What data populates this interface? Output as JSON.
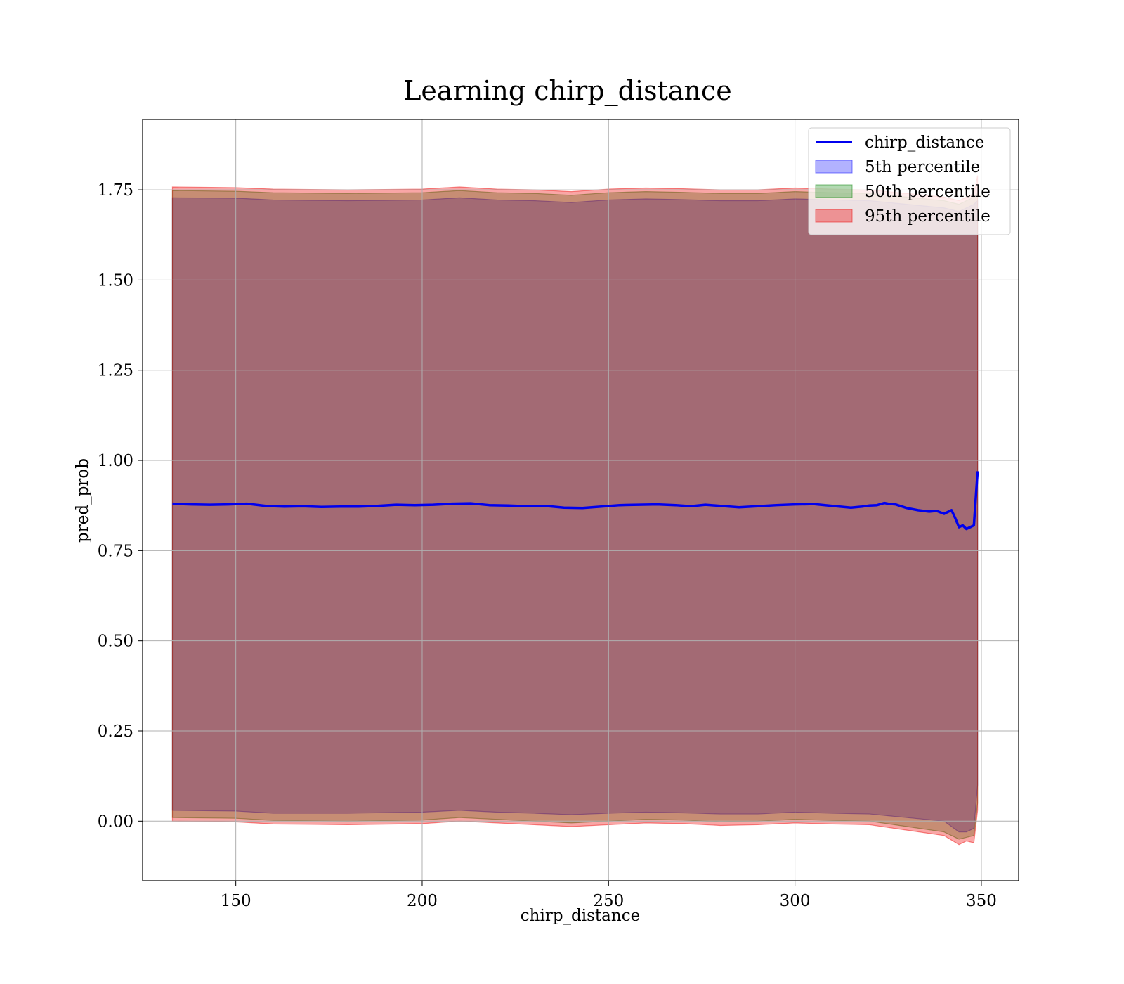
{
  "chart_data": {
    "type": "line",
    "title": "Learning chirp_distance",
    "xlabel": "chirp_distance",
    "ylabel": "pred_prob",
    "xlim": [
      125,
      360
    ],
    "ylim": [
      -0.165,
      1.945
    ],
    "xticks": [
      150,
      200,
      250,
      300,
      350
    ],
    "xtick_labels": [
      "150",
      "200",
      "250",
      "300",
      "350"
    ],
    "yticks": [
      0.0,
      0.25,
      0.5,
      0.75,
      1.0,
      1.25,
      1.5,
      1.75
    ],
    "ytick_labels": [
      "0.00",
      "0.25",
      "0.50",
      "0.75",
      "1.00",
      "1.25",
      "1.50",
      "1.75"
    ],
    "grid": true,
    "legend_position": "top-right",
    "line": {
      "name": "chirp_distance",
      "color": "#0000ee",
      "x": [
        133,
        138,
        143,
        148,
        153,
        158,
        163,
        168,
        173,
        178,
        183,
        188,
        193,
        198,
        203,
        208,
        213,
        218,
        223,
        228,
        233,
        238,
        243,
        248,
        253,
        258,
        263,
        268,
        272,
        276,
        280,
        285,
        290,
        295,
        300,
        305,
        310,
        315,
        318,
        320,
        322,
        324,
        325,
        327,
        330,
        333,
        336,
        338,
        340,
        342,
        343,
        344,
        345,
        346,
        347,
        348,
        349
      ],
      "y": [
        0.88,
        0.878,
        0.877,
        0.878,
        0.88,
        0.874,
        0.872,
        0.873,
        0.871,
        0.872,
        0.872,
        0.874,
        0.877,
        0.876,
        0.877,
        0.88,
        0.881,
        0.876,
        0.875,
        0.873,
        0.874,
        0.869,
        0.868,
        0.872,
        0.876,
        0.877,
        0.878,
        0.876,
        0.873,
        0.877,
        0.874,
        0.87,
        0.873,
        0.876,
        0.878,
        0.879,
        0.874,
        0.869,
        0.872,
        0.875,
        0.876,
        0.882,
        0.88,
        0.878,
        0.868,
        0.862,
        0.858,
        0.86,
        0.852,
        0.862,
        0.84,
        0.815,
        0.82,
        0.81,
        0.815,
        0.82,
        0.97
      ]
    },
    "bands": [
      {
        "name": "5th percentile",
        "color": "#0000ff",
        "opacity": 0.3,
        "x": [
          133,
          150,
          160,
          180,
          200,
          210,
          220,
          230,
          240,
          250,
          260,
          270,
          280,
          290,
          300,
          310,
          320,
          330,
          340,
          344,
          346,
          348,
          349
        ],
        "lower": [
          0.03,
          0.028,
          0.022,
          0.022,
          0.025,
          0.03,
          0.025,
          0.022,
          0.018,
          0.022,
          0.025,
          0.023,
          0.02,
          0.02,
          0.025,
          0.022,
          0.02,
          0.01,
          0.0,
          -0.03,
          -0.03,
          -0.02,
          0.1
        ],
        "upper": [
          1.728,
          1.727,
          1.722,
          1.72,
          1.722,
          1.728,
          1.722,
          1.72,
          1.715,
          1.722,
          1.725,
          1.723,
          1.72,
          1.72,
          1.725,
          1.722,
          1.72,
          1.71,
          1.7,
          1.69,
          1.7,
          1.71,
          1.72
        ]
      },
      {
        "name": "50th percentile",
        "color": "#008000",
        "opacity": 0.3,
        "x": [
          133,
          150,
          160,
          180,
          200,
          210,
          220,
          230,
          240,
          250,
          260,
          270,
          280,
          290,
          300,
          310,
          320,
          330,
          340,
          344,
          346,
          348,
          349
        ],
        "lower": [
          0.01,
          0.008,
          0.002,
          0.0,
          0.003,
          0.01,
          0.005,
          0.0,
          -0.005,
          0.0,
          0.005,
          0.003,
          -0.002,
          0.0,
          0.005,
          0.002,
          0.0,
          -0.015,
          -0.03,
          -0.05,
          -0.045,
          -0.04,
          0.05
        ],
        "upper": [
          1.748,
          1.746,
          1.742,
          1.74,
          1.742,
          1.748,
          1.742,
          1.74,
          1.735,
          1.742,
          1.745,
          1.743,
          1.74,
          1.74,
          1.745,
          1.742,
          1.74,
          1.73,
          1.72,
          1.71,
          1.72,
          1.73,
          1.74
        ]
      },
      {
        "name": "95th percentile",
        "color": "#ee0000",
        "opacity": 0.35,
        "x": [
          133,
          150,
          160,
          180,
          200,
          210,
          220,
          230,
          240,
          250,
          260,
          270,
          280,
          290,
          300,
          310,
          320,
          330,
          340,
          344,
          346,
          348,
          349
        ],
        "lower": [
          0.0,
          -0.002,
          -0.008,
          -0.01,
          -0.007,
          0.0,
          -0.005,
          -0.01,
          -0.015,
          -0.01,
          -0.005,
          -0.007,
          -0.012,
          -0.01,
          -0.005,
          -0.008,
          -0.01,
          -0.025,
          -0.04,
          -0.065,
          -0.055,
          -0.06,
          0.03
        ],
        "upper": [
          1.758,
          1.756,
          1.752,
          1.75,
          1.752,
          1.758,
          1.752,
          1.75,
          1.745,
          1.752,
          1.755,
          1.753,
          1.75,
          1.75,
          1.755,
          1.752,
          1.75,
          1.74,
          1.73,
          1.72,
          1.73,
          1.74,
          1.79
        ]
      }
    ],
    "legend": [
      "chirp_distance",
      "5th percentile",
      "50th percentile",
      "95th percentile"
    ]
  }
}
